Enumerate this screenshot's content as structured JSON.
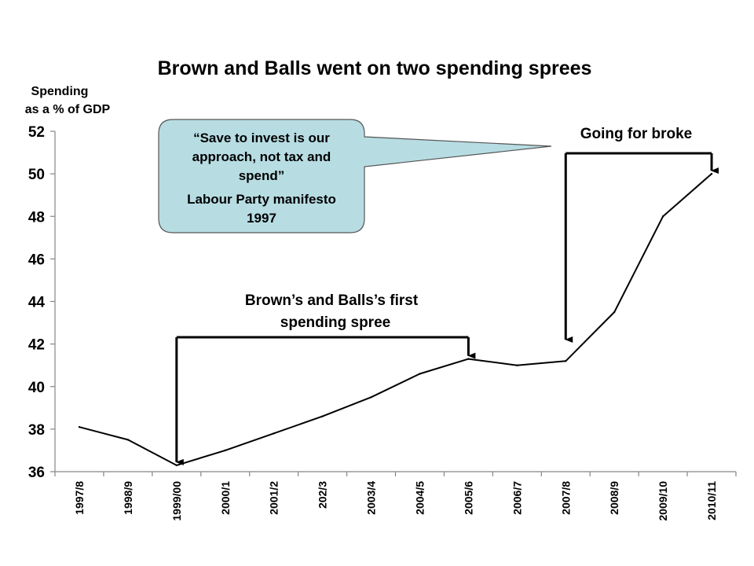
{
  "chart_data": {
    "type": "line",
    "title": "Brown and Balls went on two spending sprees",
    "ylabel_lines": [
      "Spending",
      "as a % of GDP"
    ],
    "xlabel": "",
    "categories": [
      "1997/8",
      "1998/9",
      "1999/00",
      "2000/1",
      "2001/2",
      "202/3",
      "2003/4",
      "2004/5",
      "2005/6",
      "2006/7",
      "2007/8",
      "2008/9",
      "2009/10",
      "2010/11"
    ],
    "series": [
      {
        "values": [
          38.1,
          37.5,
          36.3,
          37.0,
          37.8,
          38.6,
          39.5,
          40.6,
          41.3,
          41.0,
          41.2,
          43.5,
          48.0,
          50.0
        ]
      }
    ],
    "ylim": [
      36,
      52
    ],
    "yticks": [
      36,
      38,
      40,
      42,
      44,
      46,
      48,
      50,
      52
    ],
    "grid": false,
    "legend": "none",
    "line_color": "#000000",
    "annotations": {
      "first_spree": {
        "lines": [
          "Brown’s and Balls’s first",
          "spending spree"
        ],
        "from_category": "1999/00",
        "to_category": "2005/6"
      },
      "second_spree": {
        "lines": [
          "Going for broke"
        ],
        "from_category": "2007/8",
        "to_category": "2010/11"
      },
      "callout": {
        "lines": [
          "“Save to invest is our",
          "approach, not tax and",
          "spend”",
          "Labour Party manifesto",
          "1997"
        ],
        "fill": "#b7dde3",
        "stroke": "#555555"
      }
    }
  }
}
